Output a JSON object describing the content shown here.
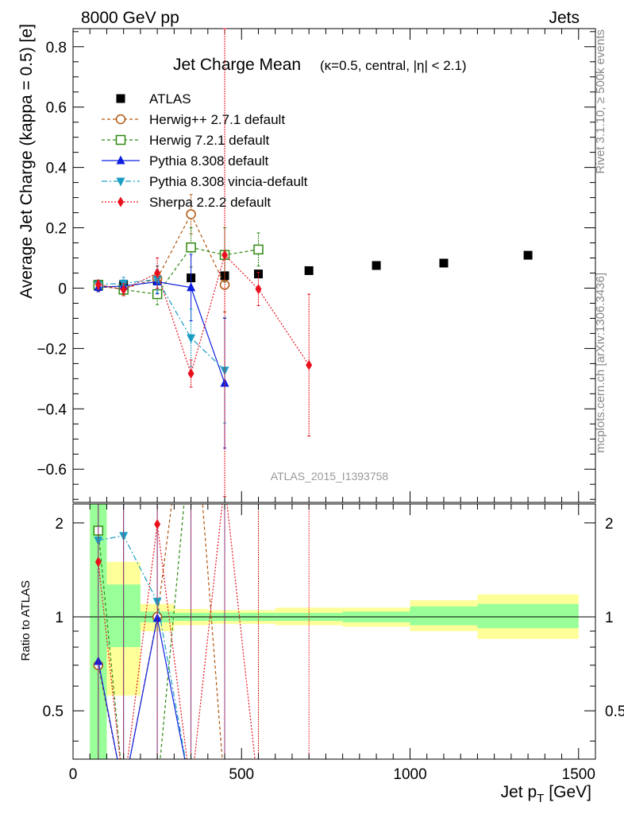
{
  "header": {
    "left": "8000 GeV pp",
    "right": "Jets"
  },
  "side_labels": {
    "right_top": "Rivet 3.1.10, ≥ 500k events",
    "right_bottom": "mcplots.cern.ch [arXiv:1306.3436]"
  },
  "chart_data": {
    "type": "scatter",
    "title": "Jet Charge Mean",
    "subtitle": "(κ=0.5, central, |η| < 2.1)",
    "watermark": "ATLAS_2015_I1393758",
    "xlabel": "Jet p_T [GeV]",
    "xlabel_main": "Jet p",
    "xlabel_sub": "T",
    "xlabel_unit": "[GeV]",
    "ylabel": "Average Jet Charge (kappa = 0.5) [e]",
    "ratio_ylabel": "Ratio to ATLAS",
    "xlim": [
      0,
      1550
    ],
    "ylim": [
      -0.71,
      0.86
    ],
    "ratio_ylim": [
      0.35,
      2.3
    ],
    "x_ticks": [
      "0",
      "500",
      "1000",
      "1500"
    ],
    "y_ticks": [
      "−0.6",
      "−0.4",
      "−0.2",
      "0",
      "0.2",
      "0.4",
      "0.6",
      "0.8"
    ],
    "ratio_ticks": [
      "0.5",
      "1",
      "2"
    ],
    "legend_position": "top-left",
    "bins": [
      [
        50,
        100
      ],
      [
        100,
        200
      ],
      [
        200,
        300
      ],
      [
        300,
        400
      ],
      [
        400,
        500
      ],
      [
        500,
        600
      ],
      [
        600,
        800
      ],
      [
        800,
        1000
      ],
      [
        1000,
        1200
      ],
      [
        1200,
        1500
      ]
    ],
    "x": [
      75,
      150,
      250,
      350,
      450,
      550,
      700,
      900,
      1100,
      1350
    ],
    "series": [
      {
        "name": "ATLAS",
        "color": "#000000",
        "marker": "square-filled",
        "values": [
          0.007,
          0.011,
          0.026,
          0.034,
          0.041,
          0.047,
          0.058,
          0.075,
          0.083,
          0.109
        ],
        "ratio_band_inner": [
          [
            0.0,
            3.0
          ],
          [
            0.8,
            1.27
          ],
          [
            0.96,
            1.04
          ],
          [
            0.97,
            1.03
          ],
          [
            0.97,
            1.03
          ],
          [
            0.97,
            1.03
          ],
          [
            0.97,
            1.03
          ],
          [
            0.96,
            1.04
          ],
          [
            0.94,
            1.08
          ],
          [
            0.92,
            1.1
          ]
        ],
        "ratio_band_outer": [
          [
            0.0,
            3.0
          ],
          [
            0.56,
            1.5
          ],
          [
            0.9,
            1.1
          ],
          [
            0.94,
            1.06
          ],
          [
            0.95,
            1.05
          ],
          [
            0.95,
            1.05
          ],
          [
            0.94,
            1.07
          ],
          [
            0.93,
            1.07
          ],
          [
            0.9,
            1.13
          ],
          [
            0.85,
            1.18
          ]
        ]
      },
      {
        "name": "Herwig++ 2.7.1 default",
        "color": "#b0560e",
        "marker": "circle-open",
        "dash": "4,3",
        "x": [
          75,
          150,
          250,
          350,
          450
        ],
        "values": [
          0.005,
          -0.002,
          0.032,
          0.245,
          0.011
        ],
        "errors": [
          0.015,
          0.02,
          0.04,
          0.065,
          0.09
        ],
        "ratio": [
          0.7,
          0.0,
          1.0,
          7.0,
          0.0
        ]
      },
      {
        "name": "Herwig 7.2.1 default",
        "color": "#2e8a12",
        "marker": "square-open",
        "dash": "4,3",
        "x": [
          75,
          150,
          250,
          350,
          450,
          550
        ],
        "values": [
          0.011,
          -0.005,
          -0.02,
          0.135,
          0.11,
          0.128
        ],
        "errors": [
          0.015,
          0.02,
          0.035,
          0.065,
          0.09,
          0.055
        ],
        "ratio": [
          1.89,
          0.0,
          0.0,
          4.0,
          2.7,
          2.7
        ]
      },
      {
        "name": "Pythia 8.308 default",
        "color": "#0c1ee0",
        "marker": "triangle-up-filled",
        "dash": "",
        "x": [
          75,
          150,
          250,
          350,
          450
        ],
        "values": [
          0.003,
          0.007,
          0.021,
          0.002,
          -0.315
        ],
        "errors": [
          0.015,
          0.02,
          0.04,
          0.11,
          0.215
        ],
        "ratio": [
          0.72,
          0.0,
          0.99,
          0.0,
          0.0
        ]
      },
      {
        "name": "Pythia 8.308 vincia-default",
        "color": "#1a9dc4",
        "marker": "triangle-down-filled",
        "dash": "7,3,2,3",
        "x": [
          75,
          150,
          250,
          350,
          450
        ],
        "values": [
          0.012,
          0.016,
          0.029,
          -0.165,
          -0.272
        ],
        "errors": [
          0.015,
          0.02,
          0.045,
          0.095,
          0.175
        ],
        "ratio": [
          1.76,
          1.82,
          1.12,
          0.0,
          0.0
        ]
      },
      {
        "name": "Sherpa 2.2.2 default",
        "color": "#e8101c",
        "marker": "diamond-filled",
        "dash": "2,2",
        "x": [
          75,
          150,
          250,
          350,
          450,
          550,
          700
        ],
        "values": [
          0.012,
          -0.005,
          0.05,
          -0.283,
          0.11,
          -0.003,
          -0.255
        ],
        "errors": [
          0.015,
          0.02,
          0.05,
          0.045,
          0.8,
          0.055,
          0.235
        ],
        "ratio": [
          1.5,
          0.0,
          1.98,
          0.0,
          2.7,
          0.0,
          0.0
        ]
      }
    ]
  }
}
